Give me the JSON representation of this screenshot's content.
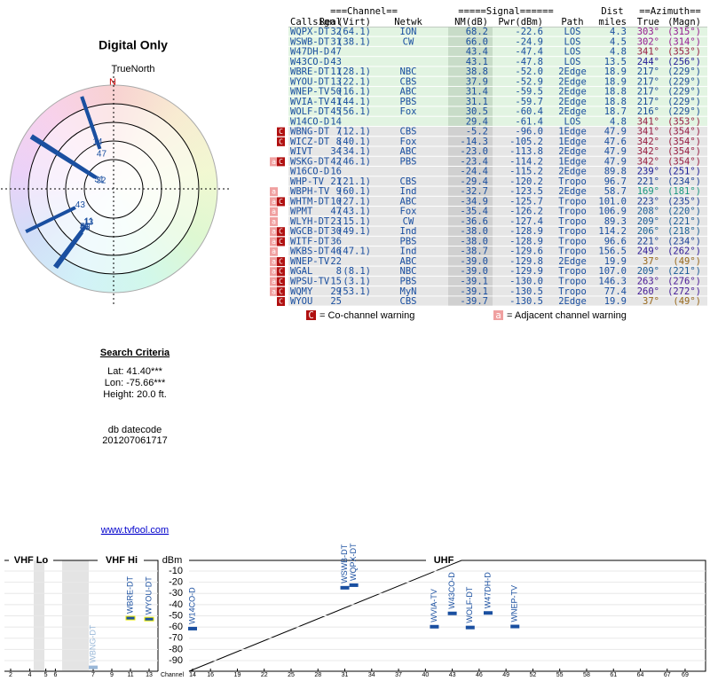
{
  "header": {
    "title": "Digital Only",
    "north_label": "TrueNorth",
    "north_mark": "N"
  },
  "table": {
    "group_headers": [
      "===Channel==",
      "=====Signal======",
      "Dist",
      "==Azimuth=="
    ],
    "columns": [
      "Callsign",
      "Real",
      "(Virt)",
      "Netwk",
      "NM(dB)",
      "Pwr(dBm)",
      "Path",
      "miles",
      "True",
      "(Magn)"
    ],
    "rows": [
      [
        "WQPX-DT",
        "32",
        "(64.1)",
        "ION",
        "68.2",
        "-22.6",
        "LOS",
        "4.3",
        "303°",
        "(315°)"
      ],
      [
        "WSWB-DT",
        "31",
        "(38.1)",
        "CW",
        "66.0",
        "-24.9",
        "LOS",
        "4.5",
        "302°",
        "(314°)"
      ],
      [
        "W47DH-D",
        "47",
        null,
        null,
        "43.4",
        "-47.4",
        "LOS",
        "4.8",
        "341°",
        "(353°)"
      ],
      [
        "W43CO-D",
        "43",
        null,
        null,
        "43.1",
        "-47.8",
        "LOS",
        "13.5",
        "244°",
        "(256°)"
      ],
      [
        "WBRE-DT",
        "11",
        "(28.1)",
        "NBC",
        "38.8",
        "-52.0",
        "2Edge",
        "18.9",
        "217°",
        "(229°)"
      ],
      [
        "WYOU-DT",
        "13",
        "(22.1)",
        "CBS",
        "37.9",
        "-52.9",
        "2Edge",
        "18.9",
        "217°",
        "(229°)"
      ],
      [
        "WNEP-TV",
        "50",
        "(16.1)",
        "ABC",
        "31.4",
        "-59.5",
        "2Edge",
        "18.8",
        "217°",
        "(229°)"
      ],
      [
        "WVIA-TV",
        "41",
        "(44.1)",
        "PBS",
        "31.1",
        "-59.7",
        "2Edge",
        "18.8",
        "217°",
        "(229°)"
      ],
      [
        "WOLF-DT",
        "45",
        "(56.1)",
        "Fox",
        "30.5",
        "-60.4",
        "2Edge",
        "18.7",
        "216°",
        "(229°)"
      ],
      [
        "W14CO-D",
        "14",
        null,
        null,
        "29.4",
        "-61.4",
        "LOS",
        "4.8",
        "341°",
        "(353°)"
      ],
      [
        "WBNG-DT",
        "7",
        "(12.1)",
        "CBS",
        "-5.2",
        "-96.0",
        "1Edge",
        "47.9",
        "341°",
        "(354°)"
      ],
      [
        "WICZ-DT",
        "8",
        "(40.1)",
        "Fox",
        "-14.3",
        "-105.2",
        "1Edge",
        "47.6",
        "342°",
        "(354°)"
      ],
      [
        "WIVT",
        "34",
        "(34.1)",
        "ABC",
        "-23.0",
        "-113.8",
        "2Edge",
        "47.9",
        "342°",
        "(354°)"
      ],
      [
        "WSKG-DT",
        "42",
        "(46.1)",
        "PBS",
        "-23.4",
        "-114.2",
        "1Edge",
        "47.9",
        "342°",
        "(354°)"
      ],
      [
        "W16CO-D",
        "16",
        null,
        null,
        "-24.4",
        "-115.2",
        "2Edge",
        "89.8",
        "239°",
        "(251°)"
      ],
      [
        "WHP-TV",
        "21",
        "(21.1)",
        "CBS",
        "-29.4",
        "-120.2",
        "Tropo",
        "96.7",
        "221°",
        "(234°)"
      ],
      [
        "WBPH-TV",
        "9",
        "(60.1)",
        "Ind",
        "-32.7",
        "-123.5",
        "2Edge",
        "58.7",
        "169°",
        "(181°)"
      ],
      [
        "WHTM-DT",
        "10",
        "(27.1)",
        "ABC",
        "-34.9",
        "-125.7",
        "Tropo",
        "101.0",
        "223°",
        "(235°)"
      ],
      [
        "WPMT",
        "47",
        "(43.1)",
        "Fox",
        "-35.4",
        "-126.2",
        "Tropo",
        "106.9",
        "208°",
        "(220°)"
      ],
      [
        "WLYH-DT",
        "23",
        "(15.1)",
        "CW",
        "-36.6",
        "-127.4",
        "Tropo",
        "89.3",
        "209°",
        "(221°)"
      ],
      [
        "WGCB-DT",
        "30",
        "(49.1)",
        "Ind",
        "-38.0",
        "-128.9",
        "Tropo",
        "114.2",
        "206°",
        "(218°)"
      ],
      [
        "WITF-DT",
        "36",
        null,
        "PBS",
        "-38.0",
        "-128.9",
        "Tropo",
        "96.6",
        "221°",
        "(234°)"
      ],
      [
        "WKBS-DT",
        "46",
        "(47.1)",
        "Ind",
        "-38.7",
        "-129.6",
        "Tropo",
        "156.5",
        "249°",
        "(262°)"
      ],
      [
        "WNEP-TV",
        "22",
        null,
        "ABC",
        "-39.0",
        "-129.8",
        "2Edge",
        "19.9",
        "37°",
        "(49°)"
      ],
      [
        "WGAL",
        "8",
        "(8.1)",
        "NBC",
        "-39.0",
        "-129.9",
        "Tropo",
        "107.0",
        "209°",
        "(221°)"
      ],
      [
        "WPSU-TV",
        "15",
        "(3.1)",
        "PBS",
        "-39.1",
        "-130.0",
        "Tropo",
        "146.3",
        "263°",
        "(276°)"
      ],
      [
        "WQMY",
        "29",
        "(53.1)",
        "MyN",
        "-39.1",
        "-130.5",
        "Tropo",
        "77.4",
        "260°",
        "(272°)"
      ],
      [
        "WYOU",
        "25",
        null,
        "CBS",
        "-39.7",
        "-130.5",
        "2Edge",
        "19.9",
        "37°",
        "(49°)"
      ]
    ],
    "warnings": [
      null,
      null,
      null,
      null,
      null,
      null,
      null,
      null,
      null,
      null,
      [
        null,
        "C"
      ],
      [
        null,
        "C"
      ],
      null,
      [
        "a",
        "C"
      ],
      null,
      null,
      [
        "a",
        null
      ],
      [
        "a",
        "C"
      ],
      [
        "a",
        null
      ],
      [
        "a",
        null
      ],
      [
        "a",
        "C"
      ],
      [
        "a",
        "C"
      ],
      [
        "a",
        null
      ],
      [
        "a",
        "C"
      ],
      [
        "a",
        "C"
      ],
      [
        "a",
        "C"
      ],
      [
        "a",
        "C"
      ],
      [
        null,
        "C"
      ]
    ]
  },
  "legend": {
    "co_mark": "C",
    "co_text": "= Co-channel warning",
    "adj_mark": "a",
    "adj_text": "= Adjacent channel warning"
  },
  "search": {
    "title": "Search Criteria",
    "lines": [
      "Lat: 41.40***",
      "Lon: -75.66***",
      "Height: 20.0 ft."
    ]
  },
  "datecode": {
    "label": "db datecode",
    "value": "201207061717"
  },
  "link": "www.tvfool.com",
  "spectrum": {
    "sections": [
      "VHF Lo",
      "VHF Hi",
      "UHF"
    ],
    "y_label": "dBm",
    "x_label": "Channel",
    "ylim": [
      -99,
      0
    ],
    "yticks": [
      -10,
      -20,
      -30,
      -40,
      -50,
      -60,
      -70,
      -80,
      -90
    ],
    "xticks": [
      2,
      4,
      5,
      6,
      7,
      9,
      11,
      13,
      14,
      16,
      19,
      22,
      25,
      28,
      31,
      34,
      37,
      40,
      43,
      46,
      49,
      52,
      55,
      58,
      61,
      64,
      67,
      69
    ],
    "stations": [
      {
        "name": "WBNG-DT",
        "channel": 7,
        "dbm": -96.0,
        "color": "#9ab8d8"
      },
      {
        "name": "WBRE-DT",
        "channel": 11,
        "dbm": -52.0,
        "color": "#1a4fa0"
      },
      {
        "name": "WYOU-DT",
        "channel": 13,
        "dbm": -52.9,
        "color": "#1a4fa0"
      },
      {
        "name": "W14CO-D",
        "channel": 14,
        "dbm": -61.4,
        "color": "#1a4fa0"
      },
      {
        "name": "WSWB-DT",
        "channel": 31,
        "dbm": -24.9,
        "color": "#1a4fa0"
      },
      {
        "name": "WQPX-DT",
        "channel": 32,
        "dbm": -22.6,
        "color": "#1a4fa0"
      },
      {
        "name": "WVIA-TV",
        "channel": 41,
        "dbm": -59.7,
        "color": "#1a4fa0"
      },
      {
        "name": "W43CO-D",
        "channel": 43,
        "dbm": -47.8,
        "color": "#1a4fa0"
      },
      {
        "name": "WOLF-DT",
        "channel": 45,
        "dbm": -60.4,
        "color": "#1a4fa0"
      },
      {
        "name": "W47DH-D",
        "channel": 47,
        "dbm": -47.4,
        "color": "#1a4fa0"
      },
      {
        "name": "WNEP-TV",
        "channel": 50,
        "dbm": -59.5,
        "color": "#1a4fa0"
      }
    ]
  }
}
